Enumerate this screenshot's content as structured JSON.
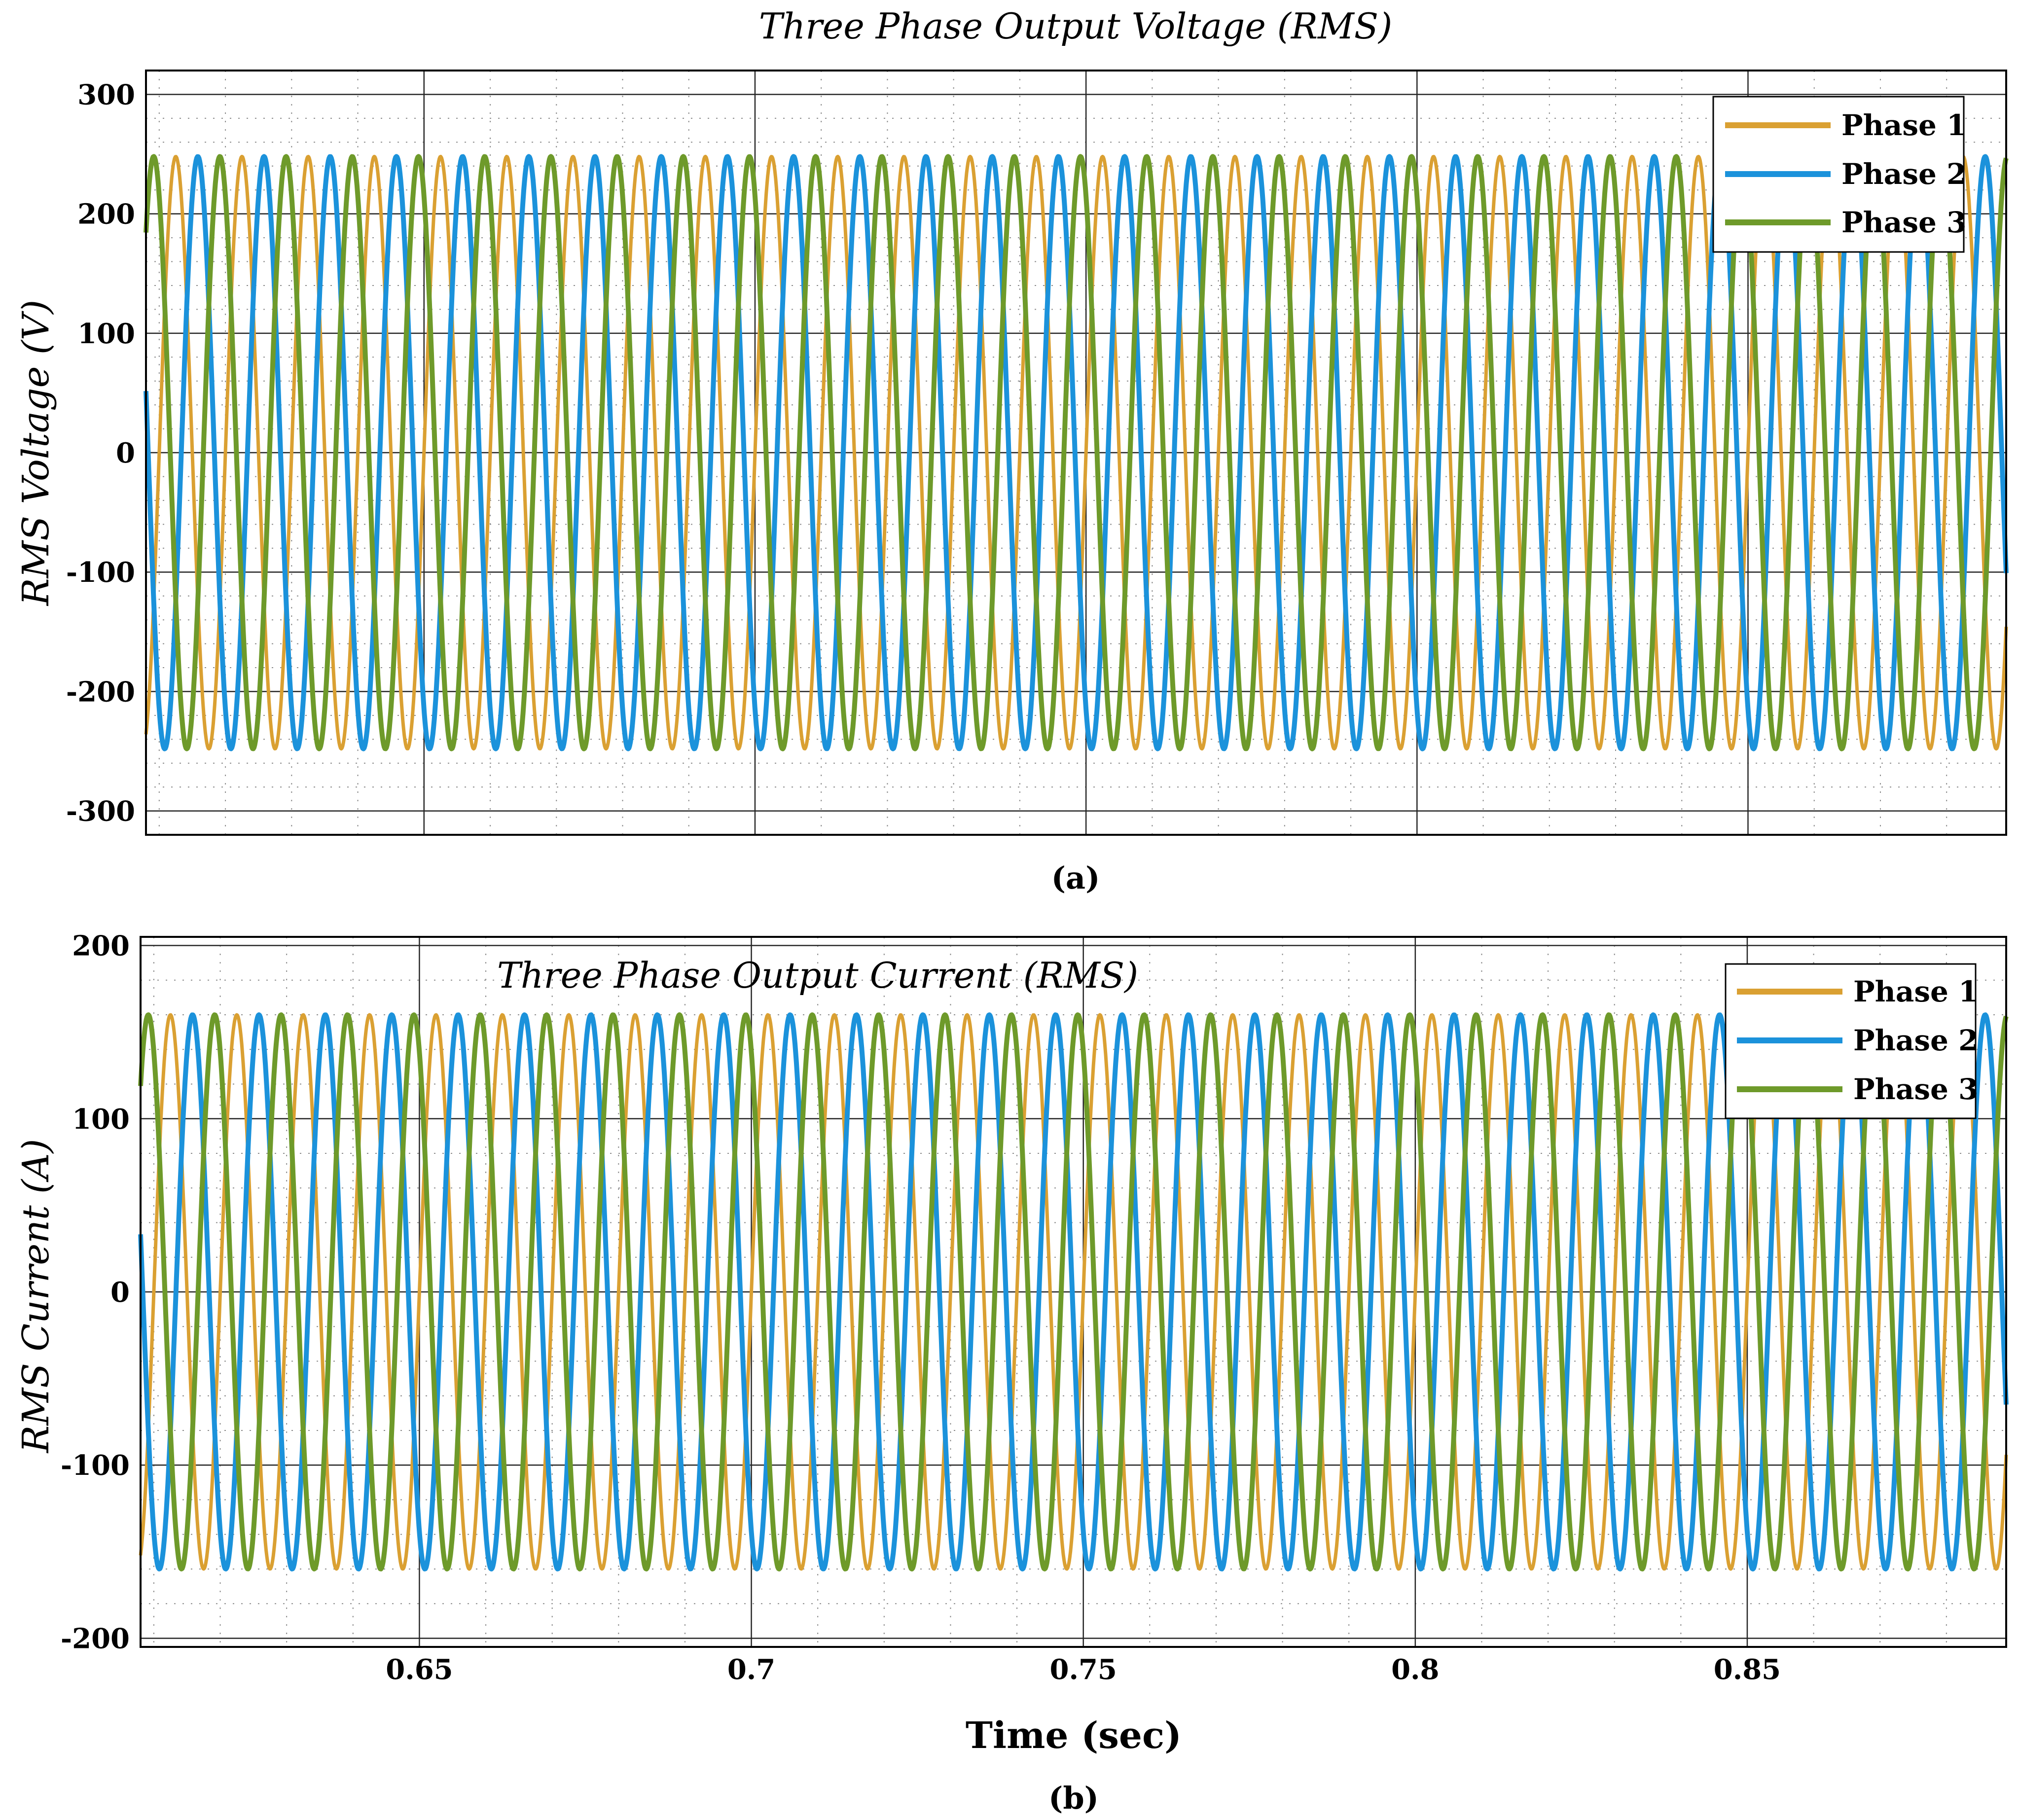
{
  "chart_data": [
    {
      "type": "line",
      "caption": "(a)",
      "title": "Three Phase Output Voltage (RMS)",
      "xlabel": "",
      "ylabel": "RMS Voltage (V)",
      "xlim": [
        0.608,
        0.889
      ],
      "ylim": [
        -320,
        320
      ],
      "yticks": [
        -300,
        -200,
        -100,
        0,
        100,
        200,
        300
      ],
      "ytick_labels": [
        "-300",
        "-200",
        "-100",
        "0",
        "100",
        "200",
        "300"
      ],
      "xticks": [
        0.65,
        0.7,
        0.75,
        0.8,
        0.85
      ],
      "xtick_labels": [],
      "grid": true,
      "minor_grid": true,
      "legend_position": "top-right",
      "frequency_hz": 100,
      "series": [
        {
          "name": "Phase 1",
          "color": "#DAA032",
          "amplitude": 248,
          "phase_deg": 0
        },
        {
          "name": "Phase 2",
          "color": "#1B92DB",
          "amplitude": 248,
          "phase_deg": -120
        },
        {
          "name": "Phase 3",
          "color": "#6E9A2A",
          "amplitude": 248,
          "phase_deg": 120
        }
      ]
    },
    {
      "type": "line",
      "caption": "(b)",
      "title": "Three Phase Output Current (RMS)",
      "xlabel": "Time (sec)",
      "ylabel": "RMS Current (A)",
      "xlim": [
        0.608,
        0.889
      ],
      "ylim": [
        -205,
        205
      ],
      "yticks": [
        -200,
        -100,
        0,
        100,
        200
      ],
      "ytick_labels": [
        "-200",
        "-100",
        "0",
        "100",
        "200"
      ],
      "xticks": [
        0.65,
        0.7,
        0.75,
        0.8,
        0.85
      ],
      "xtick_labels": [
        "0.65",
        "0.7",
        "0.75",
        "0.8",
        "0.85"
      ],
      "grid": true,
      "minor_grid": true,
      "legend_position": "top-right",
      "frequency_hz": 100,
      "series": [
        {
          "name": "Phase 1",
          "color": "#DAA032",
          "amplitude": 160,
          "phase_deg": 0
        },
        {
          "name": "Phase 2",
          "color": "#1B92DB",
          "amplitude": 160,
          "phase_deg": -120
        },
        {
          "name": "Phase 3",
          "color": "#6E9A2A",
          "amplitude": 160,
          "phase_deg": 120
        }
      ]
    }
  ]
}
